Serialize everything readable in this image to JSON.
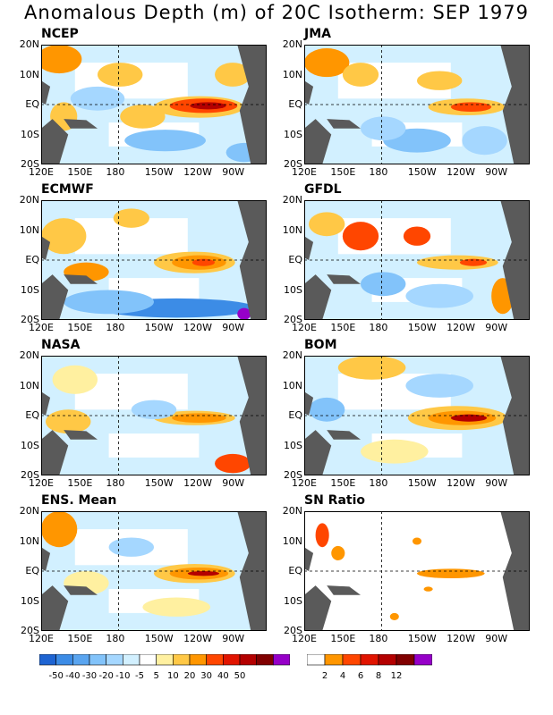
{
  "title": "Anomalous Depth (m) of 20C Isotherm: SEP 1979",
  "map_axes": {
    "y_ticks": [
      "20N",
      "10N",
      "EQ",
      "10S",
      "20S"
    ],
    "x_ticks": [
      "120E",
      "150E",
      "180",
      "150W",
      "120W",
      "90W"
    ]
  },
  "panels": [
    {
      "name": "NCEP",
      "type": "anomaly"
    },
    {
      "name": "JMA",
      "type": "anomaly"
    },
    {
      "name": "ECMWF",
      "type": "anomaly"
    },
    {
      "name": "GFDL",
      "type": "anomaly"
    },
    {
      "name": "NASA",
      "type": "anomaly"
    },
    {
      "name": "BOM",
      "type": "anomaly"
    },
    {
      "name": "ENS. Mean",
      "type": "anomaly"
    },
    {
      "name": "SN Ratio",
      "type": "snr"
    }
  ],
  "colorbar_anomaly": {
    "labels": [
      "-50",
      "-40",
      "-30",
      "-20",
      "-10",
      "-5",
      "5",
      "10",
      "20",
      "30",
      "40",
      "50"
    ],
    "colors": [
      "#1e64d2",
      "#3c8ce6",
      "#5aa5f0",
      "#82c3fa",
      "#a5d7ff",
      "#d2f0ff",
      "#ffffff",
      "#fff0a0",
      "#ffc846",
      "#ff9600",
      "#ff4600",
      "#e11400",
      "#b40000",
      "#800000",
      "#9600c8"
    ]
  },
  "colorbar_snr": {
    "labels": [
      "2",
      "4",
      "6",
      "8",
      "12"
    ],
    "colors": [
      "#ffffff",
      "#ff9600",
      "#ff4600",
      "#e11400",
      "#b40000",
      "#800000",
      "#9600c8"
    ]
  },
  "chart_data": {
    "type": "heatmap",
    "title": "Anomalous Depth (m) of 20C Isotherm: SEP 1979",
    "lon_range": [
      "120E",
      "70W"
    ],
    "lat_range": [
      "20S",
      "20N"
    ],
    "series": [
      {
        "name": "NCEP",
        "features": [
          "positive anomaly 20-40 m along equator 150W-100W",
          "strong positive near 140E 20N",
          "negative band 10S 150W-120W"
        ]
      },
      {
        "name": "JMA",
        "features": [
          "positive anomaly 10-30 m along equator 140W-110W",
          "positive 140E-160E 10N-20N",
          "negative south of 10S"
        ]
      },
      {
        "name": "ECMWF",
        "features": [
          "positive anomaly 20-40 m along equator 150W-100W",
          "strong negative band 15S-20S 150E-100W"
        ]
      },
      {
        "name": "GFDL",
        "features": [
          "positive anomaly 10-30 m along equator 130W-100W",
          "mixed positive in western Pacific"
        ]
      },
      {
        "name": "NASA",
        "features": [
          "weak positive 5-20 m along equator 150W-110W",
          "mostly weak anomalies elsewhere"
        ]
      },
      {
        "name": "BOM",
        "features": [
          "positive anomaly 20-40 m along equator 150W-100W",
          "positive western Pacific 10N-20N"
        ]
      },
      {
        "name": "ENS. Mean",
        "features": [
          "positive anomaly 10-30 m along equator 150W-110W",
          "weak positive western Pacific"
        ]
      },
      {
        "name": "SN Ratio",
        "features": [
          "ratio 2-4 along equator 150W-110W",
          "scattered 2-6 near 150E"
        ]
      }
    ]
  }
}
